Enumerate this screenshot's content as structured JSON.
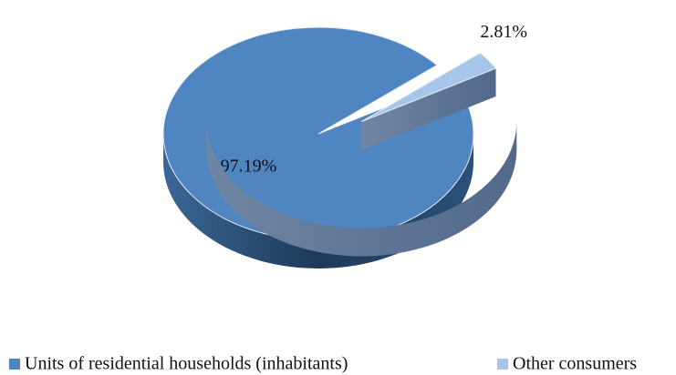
{
  "chart_data": {
    "type": "pie",
    "categories": [
      "Units of residential households (inhabitants)",
      "Other consumers"
    ],
    "values": [
      97.19,
      2.81
    ],
    "value_labels": [
      "97.19%",
      "2.81%"
    ],
    "colors": [
      "#4f86c1",
      "#a7c5e8"
    ],
    "legend": "bottom"
  }
}
